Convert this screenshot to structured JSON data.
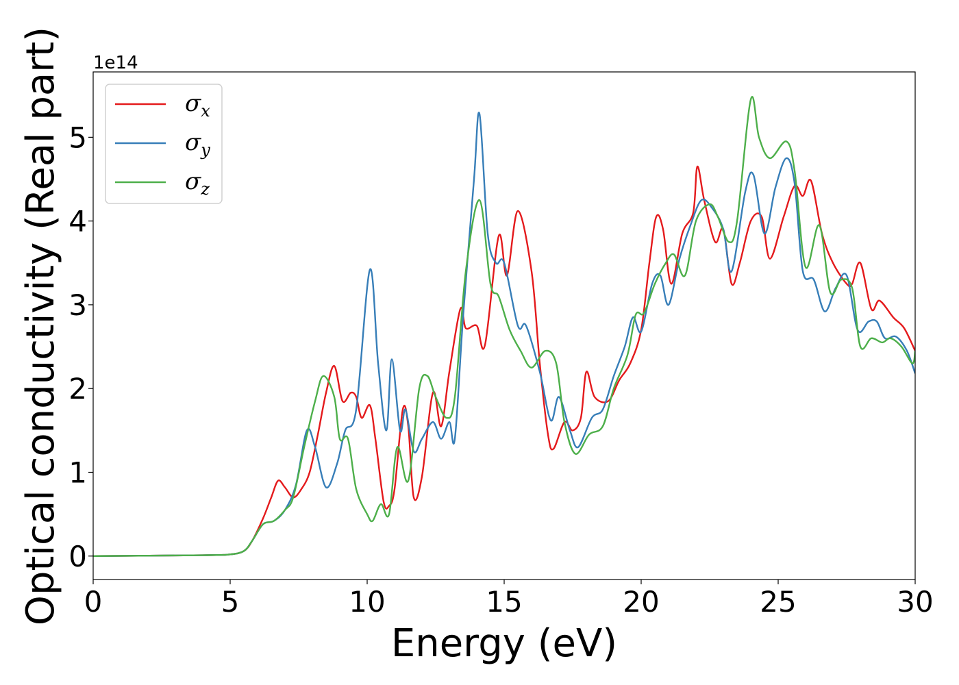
{
  "chart_data": {
    "type": "line",
    "title": "",
    "xlabel": "Energy (eV)",
    "ylabel": "Optical conductivity (Real part)",
    "y_offset_label": "1e14",
    "xlim": [
      0,
      30
    ],
    "ylim": [
      -0.28,
      5.78
    ],
    "x_ticks": [
      0,
      5,
      10,
      15,
      20,
      25,
      30
    ],
    "y_ticks": [
      0,
      1,
      2,
      3,
      4,
      5
    ],
    "grid": false,
    "legend_position": "upper-left",
    "series": [
      {
        "name": "σx",
        "symbol": "σ",
        "subscript": "x",
        "color": "#e41a1c",
        "points": [
          [
            0,
            0
          ],
          [
            4,
            0.01
          ],
          [
            5,
            0.02
          ],
          [
            5.5,
            0.06
          ],
          [
            5.8,
            0.18
          ],
          [
            6.2,
            0.45
          ],
          [
            6.5,
            0.7
          ],
          [
            6.75,
            0.9
          ],
          [
            7,
            0.82
          ],
          [
            7.3,
            0.7
          ],
          [
            7.6,
            0.8
          ],
          [
            7.9,
            1.0
          ],
          [
            8.2,
            1.45
          ],
          [
            8.5,
            1.95
          ],
          [
            8.8,
            2.27
          ],
          [
            9.1,
            1.85
          ],
          [
            9.4,
            1.95
          ],
          [
            9.6,
            1.9
          ],
          [
            9.8,
            1.65
          ],
          [
            10.1,
            1.8
          ],
          [
            10.3,
            1.4
          ],
          [
            10.6,
            0.65
          ],
          [
            10.8,
            0.6
          ],
          [
            11.0,
            0.8
          ],
          [
            11.3,
            1.75
          ],
          [
            11.5,
            1.55
          ],
          [
            11.7,
            0.7
          ],
          [
            12.0,
            0.95
          ],
          [
            12.4,
            1.95
          ],
          [
            12.7,
            1.55
          ],
          [
            13.0,
            2.2
          ],
          [
            13.4,
            2.95
          ],
          [
            13.6,
            2.72
          ],
          [
            14.0,
            2.75
          ],
          [
            14.3,
            2.52
          ],
          [
            14.8,
            3.82
          ],
          [
            15.1,
            3.35
          ],
          [
            15.5,
            4.12
          ],
          [
            16.0,
            3.4
          ],
          [
            16.3,
            2.3
          ],
          [
            16.6,
            1.45
          ],
          [
            16.8,
            1.28
          ],
          [
            17.2,
            1.6
          ],
          [
            17.5,
            1.5
          ],
          [
            17.8,
            1.65
          ],
          [
            18.0,
            2.2
          ],
          [
            18.3,
            1.9
          ],
          [
            18.8,
            1.85
          ],
          [
            19.2,
            2.1
          ],
          [
            19.6,
            2.3
          ],
          [
            20.0,
            2.7
          ],
          [
            20.3,
            3.5
          ],
          [
            20.55,
            4.05
          ],
          [
            20.8,
            3.9
          ],
          [
            21.1,
            3.25
          ],
          [
            21.5,
            3.85
          ],
          [
            21.9,
            4.1
          ],
          [
            22.05,
            4.65
          ],
          [
            22.3,
            4.25
          ],
          [
            22.7,
            3.75
          ],
          [
            23.0,
            3.9
          ],
          [
            23.3,
            3.25
          ],
          [
            23.6,
            3.5
          ],
          [
            24.0,
            4.0
          ],
          [
            24.4,
            4.05
          ],
          [
            24.7,
            3.55
          ],
          [
            25.2,
            4.05
          ],
          [
            25.6,
            4.42
          ],
          [
            25.9,
            4.3
          ],
          [
            26.2,
            4.48
          ],
          [
            26.6,
            3.85
          ],
          [
            27.0,
            3.5
          ],
          [
            27.5,
            3.25
          ],
          [
            27.7,
            3.25
          ],
          [
            28.0,
            3.5
          ],
          [
            28.4,
            2.95
          ],
          [
            28.7,
            3.05
          ],
          [
            29.2,
            2.85
          ],
          [
            29.6,
            2.72
          ],
          [
            30.0,
            2.45
          ]
        ]
      },
      {
        "name": "σy",
        "symbol": "σ",
        "subscript": "y",
        "color": "#377eb8",
        "points": [
          [
            0,
            0
          ],
          [
            4,
            0.01
          ],
          [
            5,
            0.02
          ],
          [
            5.5,
            0.06
          ],
          [
            5.8,
            0.18
          ],
          [
            6.2,
            0.38
          ],
          [
            6.6,
            0.42
          ],
          [
            7.0,
            0.55
          ],
          [
            7.4,
            0.85
          ],
          [
            7.8,
            1.5
          ],
          [
            8.1,
            1.3
          ],
          [
            8.5,
            0.82
          ],
          [
            8.9,
            1.1
          ],
          [
            9.2,
            1.5
          ],
          [
            9.6,
            1.75
          ],
          [
            10.1,
            3.42
          ],
          [
            10.4,
            2.3
          ],
          [
            10.7,
            1.5
          ],
          [
            10.9,
            2.35
          ],
          [
            11.2,
            1.5
          ],
          [
            11.4,
            1.75
          ],
          [
            11.7,
            1.25
          ],
          [
            12.0,
            1.4
          ],
          [
            12.4,
            1.6
          ],
          [
            12.7,
            1.4
          ],
          [
            13.0,
            1.6
          ],
          [
            13.2,
            1.4
          ],
          [
            13.5,
            2.85
          ],
          [
            13.9,
            4.5
          ],
          [
            14.1,
            5.28
          ],
          [
            14.4,
            3.85
          ],
          [
            14.7,
            3.5
          ],
          [
            15.0,
            3.5
          ],
          [
            15.5,
            2.75
          ],
          [
            15.8,
            2.75
          ],
          [
            16.3,
            2.2
          ],
          [
            16.7,
            1.62
          ],
          [
            17.0,
            1.9
          ],
          [
            17.4,
            1.5
          ],
          [
            17.7,
            1.3
          ],
          [
            18.2,
            1.65
          ],
          [
            18.6,
            1.75
          ],
          [
            19.0,
            2.15
          ],
          [
            19.4,
            2.5
          ],
          [
            19.7,
            2.85
          ],
          [
            20.0,
            2.68
          ],
          [
            20.4,
            3.25
          ],
          [
            20.7,
            3.35
          ],
          [
            21.0,
            3.0
          ],
          [
            21.4,
            3.55
          ],
          [
            21.8,
            3.95
          ],
          [
            22.2,
            4.25
          ],
          [
            22.6,
            4.15
          ],
          [
            23.0,
            3.9
          ],
          [
            23.3,
            3.4
          ],
          [
            23.8,
            4.35
          ],
          [
            24.1,
            4.55
          ],
          [
            24.5,
            3.85
          ],
          [
            24.9,
            4.4
          ],
          [
            25.3,
            4.75
          ],
          [
            25.6,
            4.45
          ],
          [
            25.9,
            3.4
          ],
          [
            26.3,
            3.3
          ],
          [
            26.7,
            2.92
          ],
          [
            27.1,
            3.2
          ],
          [
            27.5,
            3.35
          ],
          [
            27.9,
            2.7
          ],
          [
            28.3,
            2.8
          ],
          [
            28.6,
            2.8
          ],
          [
            28.9,
            2.6
          ],
          [
            29.3,
            2.62
          ],
          [
            29.7,
            2.45
          ],
          [
            30.0,
            2.18
          ]
        ]
      },
      {
        "name": "σz",
        "symbol": "σ",
        "subscript": "z",
        "color": "#4daf4a",
        "points": [
          [
            0,
            0
          ],
          [
            4,
            0.01
          ],
          [
            5,
            0.02
          ],
          [
            5.5,
            0.06
          ],
          [
            5.8,
            0.18
          ],
          [
            6.2,
            0.38
          ],
          [
            6.6,
            0.42
          ],
          [
            7.0,
            0.55
          ],
          [
            7.3,
            0.7
          ],
          [
            7.7,
            1.3
          ],
          [
            8.1,
            1.85
          ],
          [
            8.4,
            2.15
          ],
          [
            8.8,
            1.9
          ],
          [
            9.0,
            1.4
          ],
          [
            9.3,
            1.4
          ],
          [
            9.6,
            0.8
          ],
          [
            10.0,
            0.5
          ],
          [
            10.2,
            0.42
          ],
          [
            10.5,
            0.62
          ],
          [
            10.8,
            0.5
          ],
          [
            11.1,
            1.3
          ],
          [
            11.5,
            0.9
          ],
          [
            11.9,
            2.0
          ],
          [
            12.2,
            2.15
          ],
          [
            12.5,
            1.9
          ],
          [
            12.9,
            1.65
          ],
          [
            13.2,
            1.9
          ],
          [
            13.6,
            3.4
          ],
          [
            14.1,
            4.25
          ],
          [
            14.5,
            3.25
          ],
          [
            14.8,
            3.1
          ],
          [
            15.2,
            2.7
          ],
          [
            15.6,
            2.45
          ],
          [
            16.0,
            2.25
          ],
          [
            16.5,
            2.45
          ],
          [
            16.9,
            2.3
          ],
          [
            17.2,
            1.6
          ],
          [
            17.6,
            1.22
          ],
          [
            18.1,
            1.45
          ],
          [
            18.6,
            1.55
          ],
          [
            19.0,
            2.0
          ],
          [
            19.5,
            2.4
          ],
          [
            19.8,
            2.88
          ],
          [
            20.1,
            2.9
          ],
          [
            20.5,
            3.25
          ],
          [
            20.9,
            3.5
          ],
          [
            21.2,
            3.6
          ],
          [
            21.6,
            3.35
          ],
          [
            22.0,
            4.0
          ],
          [
            22.5,
            4.2
          ],
          [
            22.8,
            4.05
          ],
          [
            23.2,
            3.75
          ],
          [
            23.5,
            4.0
          ],
          [
            24.0,
            5.45
          ],
          [
            24.3,
            5.0
          ],
          [
            24.7,
            4.75
          ],
          [
            25.3,
            4.95
          ],
          [
            25.6,
            4.6
          ],
          [
            26.0,
            3.45
          ],
          [
            26.5,
            3.95
          ],
          [
            26.9,
            3.15
          ],
          [
            27.3,
            3.3
          ],
          [
            27.7,
            3.2
          ],
          [
            28.0,
            2.5
          ],
          [
            28.4,
            2.6
          ],
          [
            28.8,
            2.55
          ],
          [
            29.1,
            2.6
          ],
          [
            29.5,
            2.5
          ],
          [
            29.9,
            2.3
          ],
          [
            30.0,
            2.45
          ]
        ]
      }
    ]
  }
}
